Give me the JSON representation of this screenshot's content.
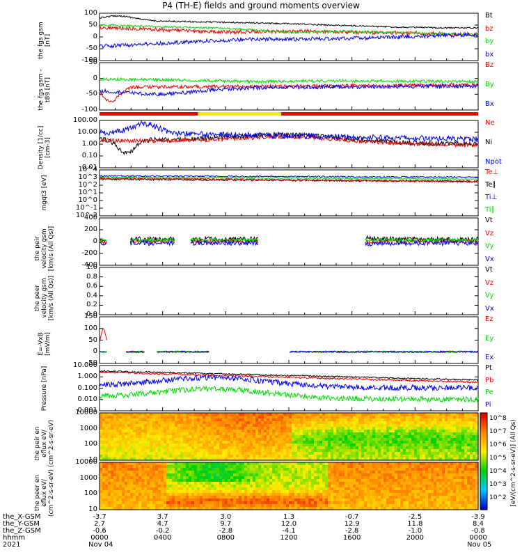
{
  "title": "P4 (TH-E) fields and ground moments overview",
  "colors": {
    "black": "#000000",
    "red": "#ee0000",
    "green": "#00dd00",
    "blue": "#0000ee",
    "yellow": "#ffee00"
  },
  "chart_data": [
    {
      "type": "line",
      "panel": "fgs",
      "ylabel": "the fgs gsm [nT]",
      "ylim": [
        -100,
        100
      ],
      "yticks": [
        "100",
        "50",
        "0",
        "-50",
        "-100"
      ],
      "series": [
        {
          "name": "Bt",
          "color": "black"
        },
        {
          "name": "bz",
          "color": "red"
        },
        {
          "name": "by",
          "color": "green"
        },
        {
          "name": "bx",
          "color": "blue"
        }
      ]
    },
    {
      "type": "line",
      "panel": "fgs-t89",
      "ylabel": "the fgs gsm -t89 [nT]",
      "ylim": [
        -125,
        50
      ],
      "yticks": [
        "50",
        "0",
        "-50",
        "-100"
      ],
      "series": [
        {
          "name": "Bz",
          "color": "red"
        },
        {
          "name": "By",
          "color": "green"
        },
        {
          "name": "Bx",
          "color": "blue"
        }
      ]
    },
    {
      "type": "line",
      "panel": "density",
      "ylabel": "Density [1/cc] [cm-3]",
      "scale": "log",
      "ylim": [
        0.01,
        100
      ],
      "yticks": [
        "100.00",
        "10.00",
        "1.00",
        "0.10",
        "0.01"
      ],
      "series": [
        {
          "name": "Ne",
          "color": "red"
        },
        {
          "name": "Ni",
          "color": "black"
        },
        {
          "name": "Npot",
          "color": "blue"
        }
      ]
    },
    {
      "type": "line",
      "panel": "temperature",
      "ylabel": "mgqt3 [eV]",
      "scale": "log",
      "yticks": [
        "10^4",
        "10^3",
        "10^2",
        "10^1",
        "10^0",
        "10^-1",
        "10^-2"
      ],
      "series": [
        {
          "name": "Te⊥",
          "color": "red"
        },
        {
          "name": "Te∥",
          "color": "black"
        },
        {
          "name": "Ti⊥",
          "color": "blue"
        },
        {
          "name": "Ti∥",
          "color": "green"
        }
      ]
    },
    {
      "type": "line",
      "panel": "peir-velocity",
      "ylabel": "the peir velocity gsm [km/s (All Qs)]",
      "ylim": [
        -400,
        400
      ],
      "yticks": [
        "400",
        "200",
        "0",
        "-200",
        "-400"
      ],
      "series": [
        {
          "name": "Vt",
          "color": "black"
        },
        {
          "name": "Vz",
          "color": "red"
        },
        {
          "name": "Vy",
          "color": "green"
        },
        {
          "name": "Vx",
          "color": "blue"
        }
      ]
    },
    {
      "type": "line",
      "panel": "peer-velocity",
      "ylabel": "the peer velocity gsm [km/s (All Qs)]",
      "ylim": [
        0,
        1
      ],
      "yticks": [
        "1.0",
        "0.8",
        "0.6",
        "0.4",
        "0.2",
        "0.0"
      ],
      "series": [
        {
          "name": "Vt",
          "color": "black"
        },
        {
          "name": "Vz",
          "color": "red"
        },
        {
          "name": "Vy",
          "color": "green"
        },
        {
          "name": "Vx",
          "color": "blue"
        }
      ]
    },
    {
      "type": "line",
      "panel": "efield",
      "ylabel": "E=-VxB [mV/m]",
      "ylim": [
        -50,
        150
      ],
      "yticks": [
        "150",
        "100",
        "50",
        "0",
        "-50"
      ],
      "series": [
        {
          "name": "Ez",
          "color": "red"
        },
        {
          "name": "Ey",
          "color": "green"
        },
        {
          "name": "Ex",
          "color": "blue"
        }
      ]
    },
    {
      "type": "line",
      "panel": "pressure",
      "ylabel": "Pressure [nPa]",
      "scale": "log",
      "ylim": [
        0.001,
        10
      ],
      "yticks": [
        "10.000",
        "1.000",
        "0.100",
        "0.010",
        "0.001"
      ],
      "series": [
        {
          "name": "Pt",
          "color": "black"
        },
        {
          "name": "Pb",
          "color": "red"
        },
        {
          "name": "Pe",
          "color": "green"
        },
        {
          "name": "Pi",
          "color": "blue"
        }
      ]
    },
    {
      "type": "heatmap",
      "panel": "peir-spectrogram",
      "ylabel": "the peir en eflux eV/ (cm^2-s-sr-eV)",
      "scale": "log",
      "yticks": [
        "10000",
        "1000",
        "100",
        "10"
      ]
    },
    {
      "type": "heatmap",
      "panel": "peer-spectrogram",
      "ylabel": "the peer en eflux eV/ (cm^2-s-sr-eV)",
      "scale": "log",
      "yticks": [
        "10000",
        "1000",
        "100",
        "10"
      ]
    }
  ],
  "colorbar": {
    "ticks": [
      "10^8",
      "10^7",
      "10^6",
      "10^5",
      "10^4",
      "10^3",
      "10^2"
    ],
    "label": "[eV/(cm^2-s-sr-eV)] (All Qs)"
  },
  "xaxis": {
    "rows": [
      {
        "name": "the_X-GSM",
        "values": [
          "-3.7",
          "3.7",
          "3.0",
          "1.3",
          "-0.7",
          "-2.5",
          "-3.9"
        ]
      },
      {
        "name": "the_Y-GSM",
        "values": [
          "2.7",
          "4.7",
          "9.7",
          "12.0",
          "12.9",
          "11.8",
          "8.4"
        ]
      },
      {
        "name": "the_Z-GSM",
        "values": [
          "-0.6",
          "-0.2",
          "-2.8",
          "-4.1",
          "-2.8",
          "-1.0",
          "-0.8"
        ]
      },
      {
        "name": "hhmm",
        "values": [
          "0000",
          "0400",
          "0800",
          "1200",
          "1600",
          "2000",
          "0000"
        ]
      }
    ],
    "year": "2021",
    "start_date": "Nov 04",
    "end_date": "Nov 05"
  }
}
